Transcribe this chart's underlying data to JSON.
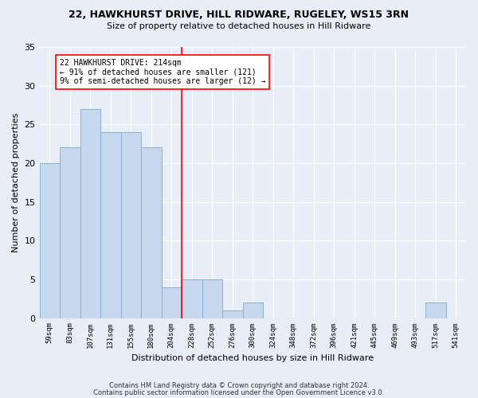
{
  "title1": "22, HAWKHURST DRIVE, HILL RIDWARE, RUGELEY, WS15 3RN",
  "title2": "Size of property relative to detached houses in Hill Ridware",
  "xlabel": "Distribution of detached houses by size in Hill Ridware",
  "ylabel": "Number of detached properties",
  "bin_labels": [
    "59sqm",
    "83sqm",
    "107sqm",
    "131sqm",
    "155sqm",
    "180sqm",
    "204sqm",
    "228sqm",
    "252sqm",
    "276sqm",
    "300sqm",
    "324sqm",
    "348sqm",
    "372sqm",
    "396sqm",
    "421sqm",
    "445sqm",
    "469sqm",
    "493sqm",
    "517sqm",
    "541sqm"
  ],
  "bar_values": [
    20,
    22,
    27,
    24,
    24,
    22,
    4,
    5,
    5,
    1,
    2,
    0,
    0,
    0,
    0,
    0,
    0,
    0,
    0,
    2,
    0
  ],
  "bar_color": "#c5d8ed",
  "bar_edgecolor": "#8ab0d0",
  "vline_index": 6.5,
  "annotation_lines": [
    "22 HAWKHURST DRIVE: 214sqm",
    "← 91% of detached houses are smaller (121)",
    "9% of semi-detached houses are larger (12) →"
  ],
  "ylim": [
    0,
    35
  ],
  "yticks": [
    0,
    5,
    10,
    15,
    20,
    25,
    30,
    35
  ],
  "footer1": "Contains HM Land Registry data © Crown copyright and database right 2024.",
  "footer2": "Contains public sector information licensed under the Open Government Licence v3.0.",
  "background_color": "#e8eef8",
  "grid_color": "#ffffff"
}
